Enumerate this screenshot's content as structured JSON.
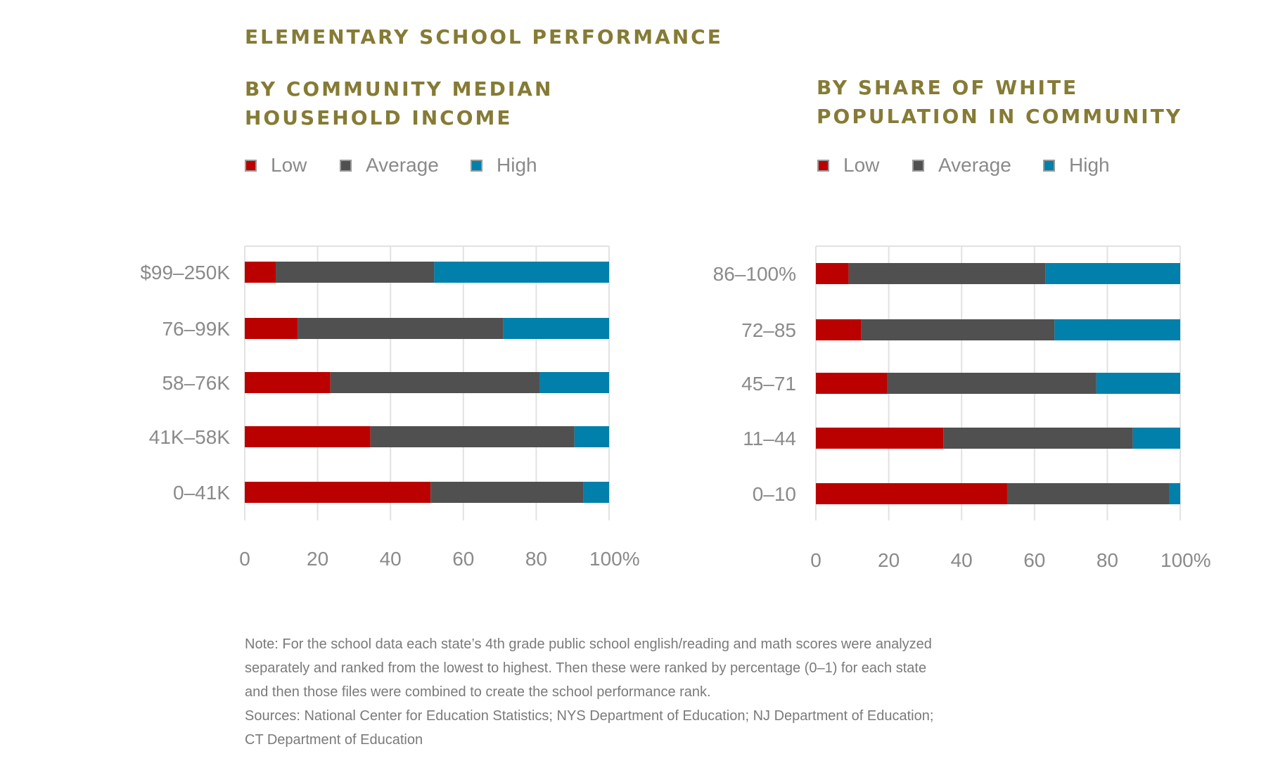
{
  "main_title": "ELEMENTARY SCHOOL PERFORMANCE",
  "legend": [
    {
      "label": "Low",
      "color": "#bb0000"
    },
    {
      "label": "Average",
      "color": "#505050"
    },
    {
      "label": "High",
      "color": "#0080aa"
    }
  ],
  "colors": {
    "low": "#bb0000",
    "average": "#505050",
    "high": "#0080aa",
    "title": "#857b35",
    "text": "#8a8a8a"
  },
  "chart_data": [
    {
      "type": "bar",
      "orientation": "horizontal",
      "stacked": true,
      "title_lines": [
        "BY COMMUNITY MEDIAN",
        "HOUSEHOLD INCOME"
      ],
      "categories": [
        "$99–250K",
        "76–99K",
        "58–76K",
        "41K–58K",
        "0–41K"
      ],
      "series": [
        {
          "name": "Low",
          "values": [
            8.5,
            14.5,
            23.5,
            34.5,
            51
          ]
        },
        {
          "name": "Average",
          "values": [
            43.5,
            56.5,
            57.5,
            56,
            42
          ]
        },
        {
          "name": "High",
          "values": [
            48,
            29,
            19,
            9.5,
            7
          ]
        }
      ],
      "xlim": [
        0,
        100
      ],
      "xticks": [
        "0",
        "20",
        "40",
        "60",
        "80",
        "100%"
      ],
      "grid": true,
      "legend_position": "top-left"
    },
    {
      "type": "bar",
      "orientation": "horizontal",
      "stacked": true,
      "title_lines": [
        "BY SHARE OF WHITE",
        "POPULATION IN COMMUNITY"
      ],
      "categories": [
        "86–100%",
        "72–85",
        "45–71",
        "11–44",
        "0–10"
      ],
      "series": [
        {
          "name": "Low",
          "values": [
            9,
            12.5,
            19.5,
            35,
            52.5
          ]
        },
        {
          "name": "Average",
          "values": [
            54,
            53,
            57.5,
            52,
            44.5
          ]
        },
        {
          "name": "High",
          "values": [
            37,
            34.5,
            23,
            13,
            3
          ]
        }
      ],
      "xlim": [
        0,
        100
      ],
      "xticks": [
        "0",
        "20",
        "40",
        "60",
        "80",
        "100%"
      ],
      "grid": true,
      "legend_position": "top-left"
    }
  ],
  "note_lines": [
    "Note: For the school data each state’s 4th grade public school english/reading and math scores were analyzed",
    "separately and ranked from the lowest to highest. Then these were ranked by percentage (0–1) for each state",
    "and then those files were combined to create the school performance rank.",
    "Sources: National Center for Education Statistics; NYS Department of Education; NJ Department of Education;",
    "CT Department of Education"
  ]
}
